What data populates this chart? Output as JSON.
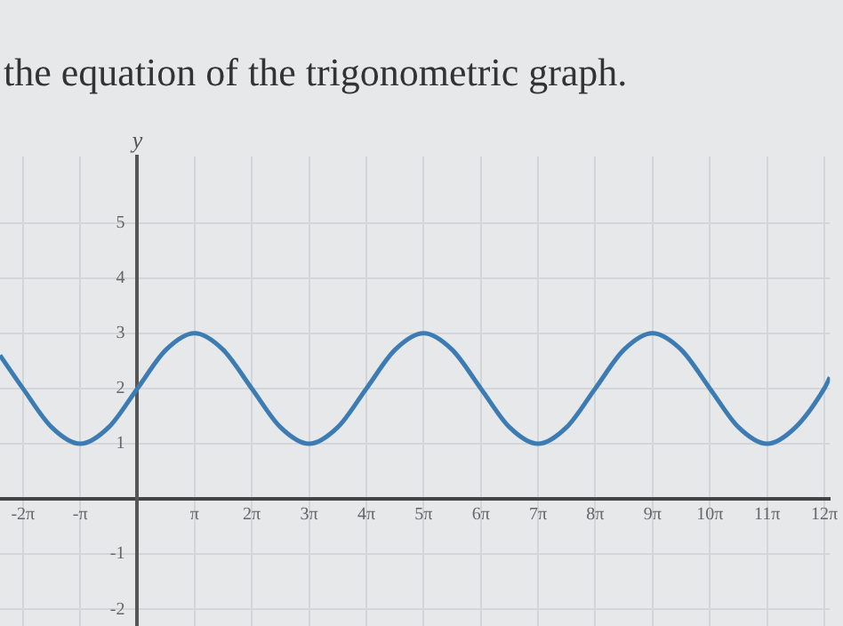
{
  "chart_data": {
    "type": "line",
    "title": "the equation of the trigonometric graph.",
    "ylabel": "y",
    "x": [
      -7.54,
      -6.28,
      -4.71,
      -3.14,
      -1.57,
      0,
      1.57,
      3.14,
      4.71,
      6.28,
      7.85,
      9.42,
      11.0,
      12.57,
      14.14,
      15.71,
      17.28,
      18.85,
      20.42,
      21.99,
      23.56,
      25.13,
      26.7,
      28.27,
      29.85,
      31.42,
      32.99,
      34.56,
      36.13,
      37.7,
      38.01
    ],
    "series": [
      {
        "color": "#3d7bb3",
        "values": [
          2.6,
          2,
          1.3,
          1,
          1.3,
          2,
          2.7,
          3,
          2.7,
          2,
          1.3,
          1,
          1.3,
          2,
          2.7,
          3,
          2.7,
          2,
          1.3,
          1,
          1.3,
          2,
          2.7,
          3,
          2.7,
          2,
          1.3,
          1,
          1.3,
          2,
          2.2
        ]
      }
    ],
    "xlim": [
      -7.54,
      38.01
    ],
    "ylim": [
      -2.3,
      6.2
    ],
    "xticks": [
      {
        "value": -6.28,
        "label": "-2π"
      },
      {
        "value": -3.14,
        "label": "-π"
      },
      {
        "value": 3.14,
        "label": "π"
      },
      {
        "value": 6.28,
        "label": "2π"
      },
      {
        "value": 9.42,
        "label": "3π"
      },
      {
        "value": 12.57,
        "label": "4π"
      },
      {
        "value": 15.71,
        "label": "5π"
      },
      {
        "value": 18.85,
        "label": "6π"
      },
      {
        "value": 21.99,
        "label": "7π"
      },
      {
        "value": 25.13,
        "label": "8π"
      },
      {
        "value": 28.27,
        "label": "9π"
      },
      {
        "value": 31.42,
        "label": "10π"
      },
      {
        "value": 34.56,
        "label": "11π"
      },
      {
        "value": 37.7,
        "label": "12π"
      }
    ],
    "yticks": [
      -2,
      -1,
      1,
      2,
      3,
      4,
      5
    ],
    "grid": true,
    "legend": false,
    "marker": "none",
    "line_style": "solid"
  }
}
